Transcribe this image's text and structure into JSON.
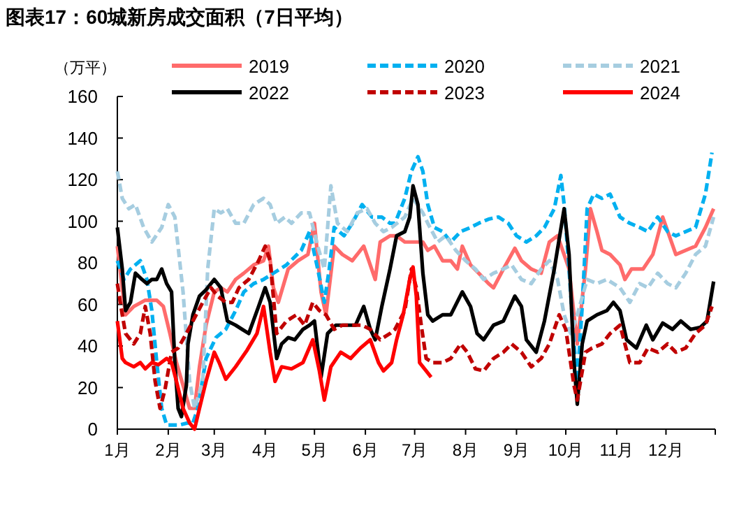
{
  "chart_data": {
    "type": "line",
    "title": "图表17：60城新房成交面积（7日平均）",
    "ylabel": "（万平）",
    "xlim": [
      "--01-01",
      "--12-31"
    ],
    "xticks": [
      {
        "value": "--01-01",
        "label": "1月"
      },
      {
        "value": "--02-01",
        "label": "2月"
      },
      {
        "value": "--03-01",
        "label": "3月"
      },
      {
        "value": "--04-01",
        "label": "4月"
      },
      {
        "value": "--05-01",
        "label": "5月"
      },
      {
        "value": "--06-01",
        "label": "6月"
      },
      {
        "value": "--07-01",
        "label": "7月"
      },
      {
        "value": "--08-01",
        "label": "8月"
      },
      {
        "value": "--09-01",
        "label": "9月"
      },
      {
        "value": "--10-01",
        "label": "10月"
      },
      {
        "value": "--11-01",
        "label": "11月"
      },
      {
        "value": "--12-01",
        "label": "12月"
      },
      {
        "value": "--12-31",
        "label": null
      }
    ],
    "ylim": [
      0,
      160
    ],
    "yticks": [
      0,
      20,
      40,
      60,
      80,
      100,
      120,
      140,
      160
    ],
    "grid": false,
    "legend": "top",
    "marker": "none",
    "series": [
      {
        "name": "2019",
        "color": "#ff6b6b",
        "line_style": "solid",
        "x": [
          "--01-01",
          "--01-04",
          "--01-06",
          "--01-11",
          "--01-18",
          "--01-25",
          "--01-29",
          "--02-02",
          "--02-06",
          "--02-10",
          "--02-14",
          "--02-17",
          "--02-20",
          "--02-24",
          "--03-01",
          "--03-05",
          "--03-09",
          "--03-14",
          "--03-19",
          "--03-25",
          "--03-31",
          "--04-03",
          "--04-06",
          "--04-09",
          "--04-15",
          "--04-21",
          "--04-27",
          "--05-01",
          "--05-05",
          "--05-08",
          "--05-13",
          "--05-18",
          "--05-24",
          "--05-31",
          "--06-07",
          "--06-10",
          "--06-16",
          "--06-20",
          "--06-25",
          "--07-06",
          "--07-09",
          "--07-13",
          "--07-18",
          "--07-23",
          "--07-27",
          "--07-30",
          "--08-04",
          "--08-09",
          "--08-15",
          "--08-18",
          "--08-24",
          "--08-31",
          "--09-04",
          "--09-10",
          "--09-16",
          "--09-21",
          "--09-26",
          "--10-03",
          "--10-06",
          "--10-08",
          "--10-13",
          "--10-16",
          "--10-20",
          "--10-23",
          "--10-28",
          "--11-03",
          "--11-06",
          "--11-10",
          "--11-17",
          "--11-23",
          "--11-29",
          "--12-03",
          "--12-07",
          "--12-13",
          "--12-19",
          "--12-25",
          "--12-30"
        ],
        "values": [
          88,
          68,
          55,
          59,
          62,
          62,
          59,
          46,
          32,
          21,
          10,
          10,
          30,
          50,
          66,
          68,
          66,
          72,
          75,
          79,
          81,
          88,
          68,
          61,
          77,
          81,
          84,
          99,
          66,
          55,
          88,
          84,
          81,
          88,
          72,
          90,
          93,
          93,
          90,
          90,
          86,
          88,
          81,
          81,
          77,
          88,
          79,
          75,
          70,
          68,
          77,
          87,
          81,
          77,
          75,
          90,
          93,
          77,
          55,
          41,
          77,
          106,
          95,
          86,
          84,
          79,
          72,
          77,
          77,
          84,
          102,
          93,
          84,
          86,
          88,
          97,
          106
        ]
      },
      {
        "name": "2020",
        "color": "#00b0f0",
        "line_style": "dashed",
        "x": [
          "--01-01",
          "--01-05",
          "--01-09",
          "--01-15",
          "--01-19",
          "--01-22",
          "--01-25",
          "--01-28",
          "--01-31",
          "--02-04",
          "--02-08",
          "--02-13",
          "--02-16",
          "--02-19",
          "--02-24",
          "--03-02",
          "--03-08",
          "--03-14",
          "--03-19",
          "--03-25",
          "--03-31",
          "--04-06",
          "--04-14",
          "--04-23",
          "--04-28",
          "--05-03",
          "--05-07",
          "--05-10",
          "--05-13",
          "--05-19",
          "--05-24",
          "--05-30",
          "--06-05",
          "--06-11",
          "--06-16",
          "--06-19",
          "--06-25",
          "--06-29",
          "--07-03",
          "--07-06",
          "--07-09",
          "--07-13",
          "--07-18",
          "--07-23",
          "--07-29",
          "--08-04",
          "--08-09",
          "--08-15",
          "--08-21",
          "--08-27",
          "--09-01",
          "--09-07",
          "--09-13",
          "--09-18",
          "--09-24",
          "--09-28",
          "--09-30",
          "--10-03",
          "--10-06",
          "--10-08",
          "--10-11",
          "--10-14",
          "--10-18",
          "--10-23",
          "--10-28",
          "--11-03",
          "--11-09",
          "--11-15",
          "--11-20",
          "--11-26",
          "--12-02",
          "--12-07",
          "--12-13",
          "--12-19",
          "--12-25",
          "--12-29"
        ],
        "values": [
          81,
          72,
          77,
          81,
          72,
          57,
          32,
          10,
          2,
          2,
          2,
          3,
          3,
          10,
          34,
          44,
          48,
          57,
          66,
          70,
          72,
          75,
          79,
          86,
          95,
          77,
          61,
          77,
          97,
          93,
          99,
          108,
          102,
          102,
          99,
          99,
          111,
          124,
          131,
          124,
          108,
          97,
          95,
          90,
          95,
          97,
          99,
          101,
          102,
          99,
          93,
          90,
          93,
          97,
          106,
          122,
          108,
          77,
          41,
          23,
          59,
          106,
          113,
          111,
          113,
          102,
          99,
          97,
          95,
          102,
          95,
          93,
          95,
          97,
          113,
          133
        ]
      },
      {
        "name": "2021",
        "color": "#a6cde0",
        "line_style": "dashed",
        "x": [
          "--01-01",
          "--01-04",
          "--01-08",
          "--01-12",
          "--01-17",
          "--01-22",
          "--01-28",
          "--02-01",
          "--02-05",
          "--02-10",
          "--02-14",
          "--02-17",
          "--02-22",
          "--02-25",
          "--03-01",
          "--03-05",
          "--03-09",
          "--03-14",
          "--03-19",
          "--03-25",
          "--03-31",
          "--04-04",
          "--04-08",
          "--04-13",
          "--04-17",
          "--04-23",
          "--04-28",
          "--05-03",
          "--05-07",
          "--05-11",
          "--05-15",
          "--05-21",
          "--05-27",
          "--06-02",
          "--06-07",
          "--06-12",
          "--06-17",
          "--06-25",
          "--06-30",
          "--07-06",
          "--07-09",
          "--07-15",
          "--07-20",
          "--07-26",
          "--08-01",
          "--08-07",
          "--08-12",
          "--08-18",
          "--08-24",
          "--08-29",
          "--09-04",
          "--09-10",
          "--09-16",
          "--09-21",
          "--09-26",
          "--09-30",
          "--10-04",
          "--10-08",
          "--10-14",
          "--10-20",
          "--10-26",
          "--11-03",
          "--11-09",
          "--11-15",
          "--11-20",
          "--11-26",
          "--12-02",
          "--12-07",
          "--12-13",
          "--12-19",
          "--12-25",
          "--12-30"
        ],
        "values": [
          124,
          111,
          106,
          108,
          97,
          90,
          97,
          108,
          102,
          66,
          23,
          10,
          23,
          77,
          106,
          104,
          106,
          99,
          99,
          108,
          111,
          108,
          99,
          102,
          99,
          104,
          104,
          88,
          77,
          117,
          99,
          95,
          104,
          106,
          99,
          95,
          97,
          102,
          111,
          104,
          99,
          90,
          93,
          86,
          81,
          77,
          72,
          75,
          77,
          79,
          72,
          70,
          77,
          81,
          72,
          55,
          46,
          55,
          72,
          70,
          72,
          68,
          61,
          70,
          68,
          75,
          70,
          68,
          75,
          84,
          88,
          102
        ]
      },
      {
        "name": "2022",
        "color": "#000000",
        "line_style": "solid",
        "x": [
          "--01-01",
          "--01-04",
          "--01-06",
          "--01-09",
          "--01-12",
          "--01-16",
          "--01-19",
          "--01-22",
          "--01-25",
          "--01-28",
          "--01-31",
          "--02-03",
          "--02-05",
          "--02-07",
          "--02-09",
          "--02-12",
          "--02-13",
          "--02-16",
          "--02-20",
          "--02-24",
          "--03-01",
          "--03-05",
          "--03-09",
          "--03-14",
          "--03-18",
          "--03-22",
          "--03-28",
          "--04-01",
          "--04-04",
          "--04-08",
          "--04-11",
          "--04-15",
          "--04-19",
          "--04-24",
          "--04-28",
          "--05-01",
          "--05-05",
          "--05-09",
          "--05-14",
          "--05-20",
          "--05-26",
          "--05-31",
          "--06-04",
          "--06-07",
          "--06-11",
          "--06-16",
          "--06-20",
          "--06-25",
          "--06-28",
          "--06-30",
          "--07-03",
          "--07-06",
          "--07-09",
          "--07-12",
          "--07-18",
          "--07-23",
          "--07-30",
          "--08-04",
          "--08-08",
          "--08-12",
          "--08-18",
          "--08-24",
          "--08-31",
          "--09-04",
          "--09-07",
          "--09-13",
          "--09-18",
          "--09-24",
          "--09-30",
          "--10-03",
          "--10-06",
          "--10-08",
          "--10-11",
          "--10-14",
          "--10-20",
          "--10-26",
          "--10-30",
          "--11-03",
          "--11-07",
          "--11-13",
          "--11-19",
          "--11-23",
          "--11-29",
          "--12-05",
          "--12-10",
          "--12-16",
          "--12-22",
          "--12-26",
          "--12-30"
        ],
        "values": [
          97,
          77,
          57,
          61,
          75,
          72,
          70,
          72,
          72,
          77,
          70,
          66,
          32,
          10,
          6,
          21,
          41,
          55,
          64,
          67,
          72,
          68,
          52,
          50,
          48,
          46,
          59,
          68,
          61,
          34,
          41,
          44,
          43,
          48,
          50,
          52,
          25,
          46,
          50,
          50,
          50,
          59,
          48,
          43,
          59,
          77,
          93,
          95,
          102,
          117,
          108,
          75,
          55,
          52,
          55,
          55,
          66,
          59,
          46,
          43,
          50,
          52,
          64,
          59,
          43,
          37,
          52,
          77,
          106,
          84,
          32,
          12,
          41,
          52,
          55,
          57,
          61,
          57,
          43,
          39,
          50,
          43,
          51,
          48,
          52,
          48,
          49,
          52,
          71
        ]
      },
      {
        "name": "2023",
        "color": "#c00000",
        "line_style": "dashed",
        "x": [
          "--01-01",
          "--01-04",
          "--01-06",
          "--01-11",
          "--01-15",
          "--01-18",
          "--01-21",
          "--01-24",
          "--01-27",
          "--01-30",
          "--02-03",
          "--02-07",
          "--02-12",
          "--02-16",
          "--02-22",
          "--02-27",
          "--03-03",
          "--03-08",
          "--03-12",
          "--03-16",
          "--03-22",
          "--03-28",
          "--04-01",
          "--04-04",
          "--04-08",
          "--04-14",
          "--04-20",
          "--04-25",
          "--04-30",
          "--05-04",
          "--05-08",
          "--05-13",
          "--05-18",
          "--05-24",
          "--05-30",
          "--06-04",
          "--06-10",
          "--06-16",
          "--06-19",
          "--06-25",
          "--06-29",
          "--07-02",
          "--07-05",
          "--07-08",
          "--07-12",
          "--07-18",
          "--07-23",
          "--07-29",
          "--08-02",
          "--08-07",
          "--08-12",
          "--08-18",
          "--08-24",
          "--08-29",
          "--09-04",
          "--09-10",
          "--09-16",
          "--09-21",
          "--09-27",
          "--10-01",
          "--10-06",
          "--10-08",
          "--10-13",
          "--10-17",
          "--10-23",
          "--10-28",
          "--11-03",
          "--11-09",
          "--11-15",
          "--11-20",
          "--11-26",
          "--12-02",
          "--12-07",
          "--12-13",
          "--12-19",
          "--12-25",
          "--12-29"
        ],
        "values": [
          70,
          55,
          46,
          41,
          46,
          59,
          46,
          23,
          10,
          19,
          37,
          39,
          46,
          52,
          61,
          68,
          64,
          61,
          61,
          68,
          72,
          81,
          88,
          81,
          46,
          52,
          55,
          50,
          61,
          57,
          55,
          48,
          50,
          50,
          50,
          48,
          43,
          46,
          48,
          57,
          77,
          68,
          50,
          34,
          32,
          32,
          34,
          41,
          37,
          29,
          28,
          34,
          37,
          41,
          37,
          30,
          34,
          41,
          55,
          48,
          21,
          14,
          37,
          39,
          41,
          46,
          50,
          32,
          32,
          39,
          37,
          41,
          37,
          39,
          46,
          50,
          59
        ]
      },
      {
        "name": "2024",
        "color": "#ff0000",
        "line_style": "solid",
        "x": [
          "--01-01",
          "--01-04",
          "--01-06",
          "--01-11",
          "--01-15",
          "--01-18",
          "--01-22",
          "--01-26",
          "--01-31",
          "--02-03",
          "--02-06",
          "--02-10",
          "--02-14",
          "--02-17",
          "--02-20",
          "--02-24",
          "--03-01",
          "--03-04",
          "--03-08",
          "--03-14",
          "--03-21",
          "--03-27",
          "--03-31",
          "--04-04",
          "--04-07",
          "--04-11",
          "--04-17",
          "--04-24",
          "--04-30",
          "--05-04",
          "--05-07",
          "--05-11",
          "--05-17",
          "--05-23",
          "--05-29",
          "--06-04",
          "--06-09",
          "--06-12",
          "--06-17",
          "--06-20",
          "--06-24",
          "--06-28",
          "--06-30",
          "--07-02",
          "--07-04",
          "--07-08",
          "--07-11"
        ],
        "values": [
          52,
          34,
          32,
          30,
          32,
          29,
          32,
          31,
          34,
          32,
          23,
          10,
          3,
          0,
          10,
          23,
          37,
          32,
          24,
          30,
          38,
          46,
          59,
          37,
          23,
          30,
          29,
          32,
          43,
          28,
          14,
          30,
          37,
          34,
          39,
          43,
          32,
          28,
          32,
          43,
          55,
          72,
          78,
          64,
          32,
          28,
          25
        ]
      }
    ]
  }
}
